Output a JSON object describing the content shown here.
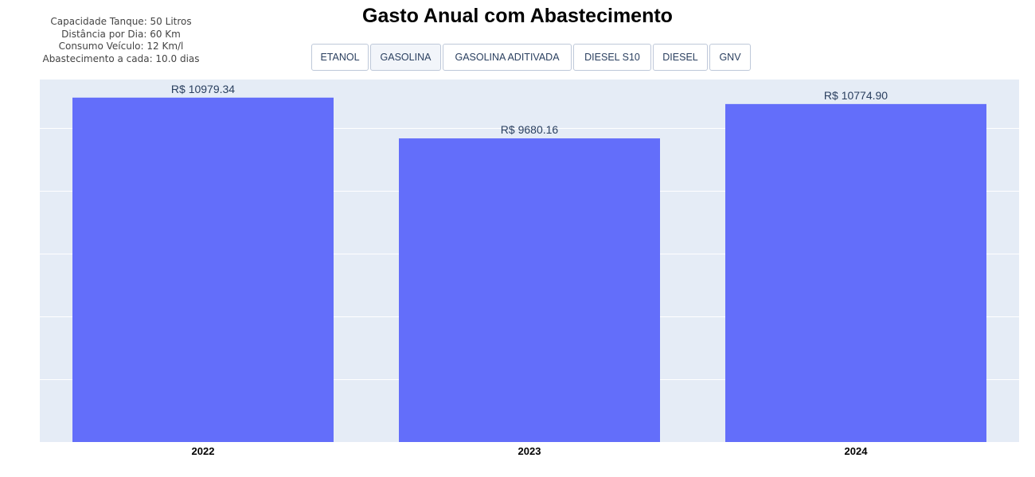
{
  "info": {
    "capacidade": "Capacidade Tanque: 50 Litros",
    "distancia": "Distância por Dia: 60 Km",
    "consumo": "Consumo Veículo: 12 Km/l",
    "abastecimento": "Abastecimento a cada: 10.0 dias"
  },
  "title": "Gasto Anual com Abastecimento",
  "buttons": [
    {
      "label": "ETANOL"
    },
    {
      "label": "GASOLINA"
    },
    {
      "label": "GASOLINA ADITIVADA"
    },
    {
      "label": "DIESEL S10"
    },
    {
      "label": "DIESEL"
    },
    {
      "label": "GNV"
    }
  ],
  "active_button": "GASOLINA",
  "colors": {
    "bar": "#636efa",
    "plot_bg": "#e5ecf6",
    "grid": "#ffffff",
    "text": "#2a3f5f"
  },
  "chart_data": {
    "type": "bar",
    "title": "Gasto Anual com Abastecimento",
    "categories": [
      "2022",
      "2023",
      "2024"
    ],
    "values": [
      10979.34,
      9680.16,
      10774.9
    ],
    "data_labels": [
      "R$ 10979.34",
      "R$ 9680.16",
      "R$ 10774.90"
    ],
    "xlabel": "",
    "ylabel": "",
    "ylim": [
      0,
      11557
    ],
    "yticks": [
      2000,
      4000,
      6000,
      8000,
      10000
    ],
    "y_tick_labels_visible": false,
    "grid": true,
    "legend": false
  }
}
